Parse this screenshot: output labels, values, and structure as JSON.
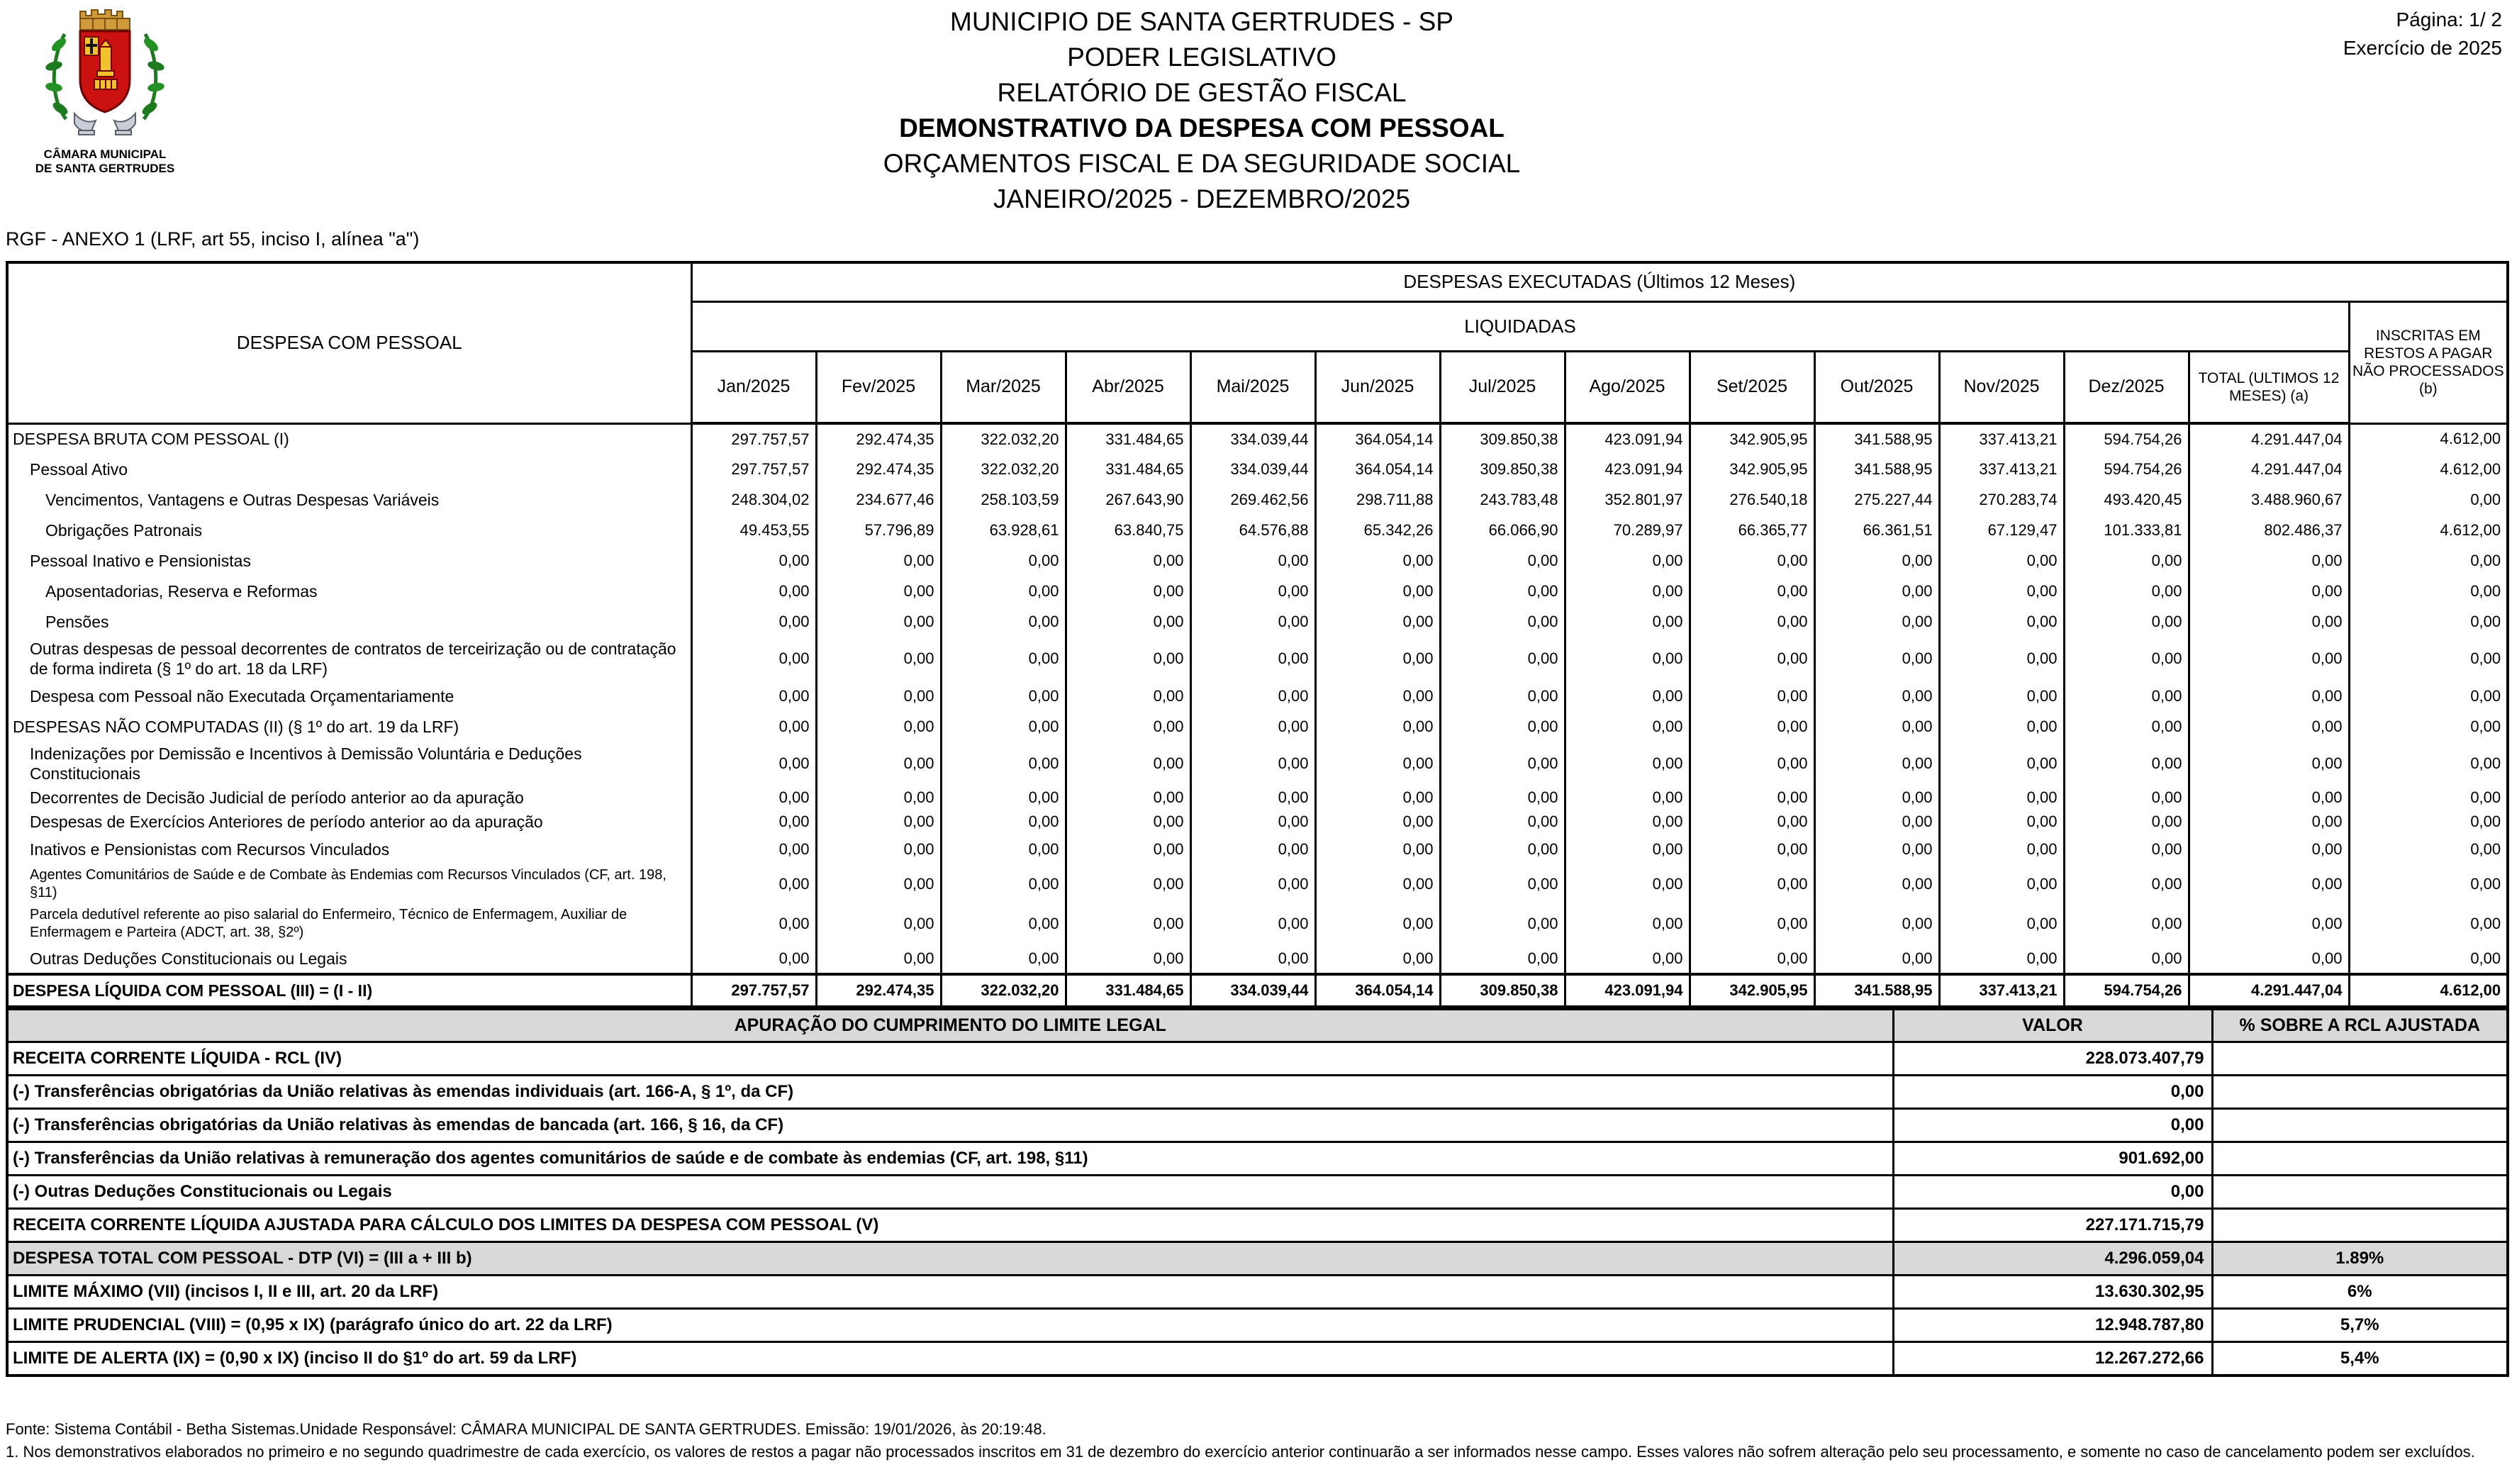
{
  "page": {
    "page_label": "Página: 1/  2",
    "exercise": "Exercício de 2025"
  },
  "header": {
    "title_lines": [
      "MUNICIPIO DE SANTA GERTRUDES - SP",
      "PODER LEGISLATIVO",
      "RELATÓRIO DE GESTÃO FISCAL",
      "DEMONSTRATIVO DA DESPESA COM PESSOAL",
      "ORÇAMENTOS FISCAL E DA SEGURIDADE SOCIAL",
      "JANEIRO/2025 - DEZEMBRO/2025"
    ],
    "logo_caption_line1": "CÂMARA MUNICIPAL",
    "logo_caption_line2": "DE SANTA GERTRUDES"
  },
  "annex_label": "RGF - ANEXO 1 (LRF, art 55, inciso I, alínea \"a\")",
  "main_table": {
    "col_despesa": "DESPESA COM PESSOAL",
    "col_executadas": "DESPESAS EXECUTADAS (Últimos 12 Meses)",
    "col_liquidadas": "LIQUIDADAS",
    "col_total": "TOTAL (ULTIMOS 12 MESES) (a)",
    "col_inscritas": "INSCRITAS EM RESTOS A PAGAR NÃO PROCESSADOS (b)",
    "months": [
      "Jan/2025",
      "Fev/2025",
      "Mar/2025",
      "Abr/2025",
      "Mai/2025",
      "Jun/2025",
      "Jul/2025",
      "Ago/2025",
      "Set/2025",
      "Out/2025",
      "Nov/2025",
      "Dez/2025"
    ],
    "rows": [
      {
        "label": "DESPESA BRUTA COM PESSOAL (I)",
        "indent": 0,
        "values": [
          "297.757,57",
          "292.474,35",
          "322.032,20",
          "331.484,65",
          "334.039,44",
          "364.054,14",
          "309.850,38",
          "423.091,94",
          "342.905,95",
          "341.588,95",
          "337.413,21",
          "594.754,26",
          "4.291.447,04",
          "4.612,00"
        ]
      },
      {
        "label": "Pessoal Ativo",
        "indent": 1,
        "values": [
          "297.757,57",
          "292.474,35",
          "322.032,20",
          "331.484,65",
          "334.039,44",
          "364.054,14",
          "309.850,38",
          "423.091,94",
          "342.905,95",
          "341.588,95",
          "337.413,21",
          "594.754,26",
          "4.291.447,04",
          "4.612,00"
        ]
      },
      {
        "label": "Vencimentos, Vantagens e Outras Despesas Variáveis",
        "indent": 2,
        "values": [
          "248.304,02",
          "234.677,46",
          "258.103,59",
          "267.643,90",
          "269.462,56",
          "298.711,88",
          "243.783,48",
          "352.801,97",
          "276.540,18",
          "275.227,44",
          "270.283,74",
          "493.420,45",
          "3.488.960,67",
          "0,00"
        ]
      },
      {
        "label": "Obrigações Patronais",
        "indent": 2,
        "values": [
          "49.453,55",
          "57.796,89",
          "63.928,61",
          "63.840,75",
          "64.576,88",
          "65.342,26",
          "66.066,90",
          "70.289,97",
          "66.365,77",
          "66.361,51",
          "67.129,47",
          "101.333,81",
          "802.486,37",
          "4.612,00"
        ]
      },
      {
        "label": "Pessoal Inativo e Pensionistas",
        "indent": 1,
        "values": [
          "0,00",
          "0,00",
          "0,00",
          "0,00",
          "0,00",
          "0,00",
          "0,00",
          "0,00",
          "0,00",
          "0,00",
          "0,00",
          "0,00",
          "0,00",
          "0,00"
        ]
      },
      {
        "label": "Aposentadorias, Reserva e Reformas",
        "indent": 2,
        "values": [
          "0,00",
          "0,00",
          "0,00",
          "0,00",
          "0,00",
          "0,00",
          "0,00",
          "0,00",
          "0,00",
          "0,00",
          "0,00",
          "0,00",
          "0,00",
          "0,00"
        ]
      },
      {
        "label": "Pensões",
        "indent": 2,
        "values": [
          "0,00",
          "0,00",
          "0,00",
          "0,00",
          "0,00",
          "0,00",
          "0,00",
          "0,00",
          "0,00",
          "0,00",
          "0,00",
          "0,00",
          "0,00",
          "0,00"
        ]
      },
      {
        "label": "Outras despesas de pessoal decorrentes de contratos de terceirização ou de contratação de forma indireta (§ 1º do art. 18 da LRF)",
        "indent": 1,
        "values": [
          "0,00",
          "0,00",
          "0,00",
          "0,00",
          "0,00",
          "0,00",
          "0,00",
          "0,00",
          "0,00",
          "0,00",
          "0,00",
          "0,00",
          "0,00",
          "0,00"
        ]
      },
      {
        "label": "Despesa com Pessoal não Executada Orçamentariamente",
        "indent": 1,
        "values": [
          "0,00",
          "0,00",
          "0,00",
          "0,00",
          "0,00",
          "0,00",
          "0,00",
          "0,00",
          "0,00",
          "0,00",
          "0,00",
          "0,00",
          "0,00",
          "0,00"
        ]
      },
      {
        "label": "DESPESAS NÃO COMPUTADAS (II) (§ 1º do art. 19 da LRF)",
        "indent": 0,
        "values": [
          "0,00",
          "0,00",
          "0,00",
          "0,00",
          "0,00",
          "0,00",
          "0,00",
          "0,00",
          "0,00",
          "0,00",
          "0,00",
          "0,00",
          "0,00",
          "0,00"
        ]
      },
      {
        "label": "Indenizações por Demissão e Incentivos à Demissão Voluntária e Deduções Constitucionais",
        "indent": 1,
        "values": [
          "0,00",
          "0,00",
          "0,00",
          "0,00",
          "0,00",
          "0,00",
          "0,00",
          "0,00",
          "0,00",
          "0,00",
          "0,00",
          "0,00",
          "0,00",
          "0,00"
        ]
      },
      {
        "label": "Decorrentes de Decisão Judicial de período anterior ao da apuração",
        "indent": 1,
        "values": [
          "0,00",
          "0,00",
          "0,00",
          "0,00",
          "0,00",
          "0,00",
          "0,00",
          "0,00",
          "0,00",
          "0,00",
          "0,00",
          "0,00",
          "0,00",
          "0,00"
        ]
      },
      {
        "label": "Despesas de Exercícios Anteriores de período anterior ao da apuração",
        "indent": 1,
        "values": [
          "0,00",
          "0,00",
          "0,00",
          "0,00",
          "0,00",
          "0,00",
          "0,00",
          "0,00",
          "0,00",
          "0,00",
          "0,00",
          "0,00",
          "0,00",
          "0,00"
        ]
      },
      {
        "label": "Inativos e Pensionistas com Recursos Vinculados",
        "indent": 1,
        "values": [
          "0,00",
          "0,00",
          "0,00",
          "0,00",
          "0,00",
          "0,00",
          "0,00",
          "0,00",
          "0,00",
          "0,00",
          "0,00",
          "0,00",
          "0,00",
          "0,00"
        ]
      },
      {
        "label": "Agentes Comunitários de Saúde e de Combate às Endemias com Recursos Vinculados (CF, art. 198, §11)",
        "indent": 1,
        "small": true,
        "values": [
          "0,00",
          "0,00",
          "0,00",
          "0,00",
          "0,00",
          "0,00",
          "0,00",
          "0,00",
          "0,00",
          "0,00",
          "0,00",
          "0,00",
          "0,00",
          "0,00"
        ]
      },
      {
        "label": "Parcela dedutível referente ao piso salarial do Enfermeiro, Técnico de Enfermagem, Auxiliar de Enfermagem e Parteira (ADCT, art. 38, §2º)",
        "indent": 1,
        "small": true,
        "values": [
          "0,00",
          "0,00",
          "0,00",
          "0,00",
          "0,00",
          "0,00",
          "0,00",
          "0,00",
          "0,00",
          "0,00",
          "0,00",
          "0,00",
          "0,00",
          "0,00"
        ]
      },
      {
        "label": "Outras Deduções Constitucionais ou Legais",
        "indent": 1,
        "values": [
          "0,00",
          "0,00",
          "0,00",
          "0,00",
          "0,00",
          "0,00",
          "0,00",
          "0,00",
          "0,00",
          "0,00",
          "0,00",
          "0,00",
          "0,00",
          "0,00"
        ]
      },
      {
        "label": "DESPESA LÍQUIDA COM PESSOAL (III) = (I - II)",
        "indent": 0,
        "total_row": true,
        "values": [
          "297.757,57",
          "292.474,35",
          "322.032,20",
          "331.484,65",
          "334.039,44",
          "364.054,14",
          "309.850,38",
          "423.091,94",
          "342.905,95",
          "341.588,95",
          "337.413,21",
          "594.754,26",
          "4.291.447,04",
          "4.612,00"
        ]
      }
    ]
  },
  "limit_table": {
    "header_label": "APURAÇÃO DO CUMPRIMENTO DO LIMITE LEGAL",
    "header_valor": "VALOR",
    "header_pct": "% SOBRE A RCL AJUSTADA",
    "rows": [
      {
        "label": "RECEITA CORRENTE LÍQUIDA - RCL (IV)",
        "valor": "228.073.407,79",
        "pct": ""
      },
      {
        "label": "(-) Transferências obrigatórias da União relativas às emendas individuais (art. 166-A, § 1º, da CF)",
        "valor": "0,00",
        "pct": ""
      },
      {
        "label": "(-) Transferências obrigatórias da União relativas às emendas de bancada (art. 166, § 16, da CF)",
        "valor": "0,00",
        "pct": ""
      },
      {
        "label": "(-) Transferências da União relativas à remuneração dos agentes comunitários de saúde e de combate às endemias (CF, art. 198, §11)",
        "valor": "901.692,00",
        "pct": ""
      },
      {
        "label": "(-) Outras Deduções Constitucionais ou Legais",
        "valor": "0,00",
        "pct": ""
      },
      {
        "label": "RECEITA CORRENTE LÍQUIDA AJUSTADA PARA CÁLCULO DOS LIMITES DA DESPESA COM PESSOAL (V)",
        "valor": "227.171.715,79",
        "pct": ""
      },
      {
        "label": "DESPESA TOTAL COM PESSOAL - DTP (VI) = (III a + III b)",
        "valor": "4.296.059,04",
        "pct": "1.89%",
        "gray": true
      },
      {
        "label": "LIMITE MÁXIMO (VII) (incisos I, II e III, art. 20 da LRF)",
        "valor": "13.630.302,95",
        "pct": "6%"
      },
      {
        "label": "LIMITE PRUDENCIAL (VIII) = (0,95 x IX) (parágrafo único do art. 22 da LRF)",
        "valor": "12.948.787,80",
        "pct": "5,7%"
      },
      {
        "label": "LIMITE DE ALERTA (IX) = (0,90 x IX) (inciso II do §1º do art. 59 da LRF)",
        "valor": "12.267.272,66",
        "pct": "5,4%"
      }
    ]
  },
  "footer": {
    "fonte": "Fonte: Sistema Contábil - Betha Sistemas.Unidade Responsável: CÂMARA MUNICIPAL DE SANTA GERTRUDES. Emissão: 19/01/2026, às 20:19:48.",
    "nota": "1. Nos demonstrativos elaborados no primeiro e no segundo quadrimestre de cada exercício, os valores de restos a pagar não processados inscritos em 31 de dezembro do exercício anterior continuarão a ser informados nesse campo. Esses valores não sofrem alteração pelo seu processamento, e somente no caso de cancelamento podem ser excluídos."
  }
}
